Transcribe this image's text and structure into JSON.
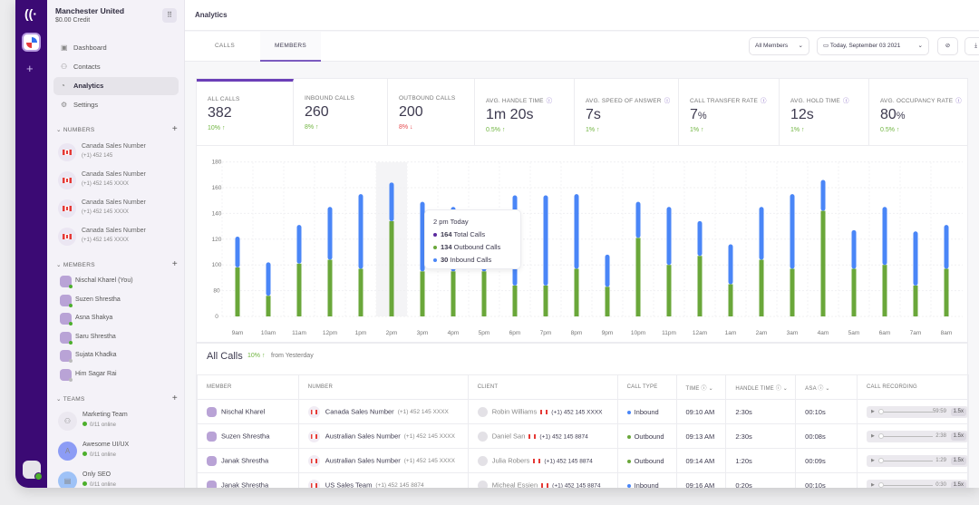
{
  "org": {
    "name": "Manchester United",
    "credit": "$0.00 Credit"
  },
  "nav": [
    {
      "label": "Dashboard",
      "icon": "dashboard-icon"
    },
    {
      "label": "Contacts",
      "icon": "contacts-icon"
    },
    {
      "label": "Analytics",
      "icon": "analytics-icon",
      "active": true
    },
    {
      "label": "Settings",
      "icon": "settings-icon"
    }
  ],
  "numbers": {
    "title": "NUMBERS",
    "items": [
      {
        "name": "Canada Sales Number",
        "number": "(+1) 452 145"
      },
      {
        "name": "Canada Sales Number",
        "number": "(+1) 452 145 XXXX"
      },
      {
        "name": "Canada Sales Number",
        "number": "(+1) 452 145 XXXX"
      },
      {
        "name": "Canada Sales Number",
        "number": "(+1) 452 145 XXXX"
      }
    ]
  },
  "members": {
    "title": "MEMBERS",
    "items": [
      {
        "name": "Nischal Kharel (You)",
        "online": true
      },
      {
        "name": "Suzen Shrestha",
        "online": true
      },
      {
        "name": "Asna Shakya",
        "online": true
      },
      {
        "name": "Saru Shrestha",
        "online": true
      },
      {
        "name": "Sujata Khadka",
        "online": false
      },
      {
        "name": "Him Sagar Rai",
        "online": false
      }
    ]
  },
  "teams": {
    "title": "TEAMS",
    "items": [
      {
        "name": "Marketing Team",
        "status": "0/11 online"
      },
      {
        "name": "Awesome UI/UX",
        "status": "0/11 online"
      },
      {
        "name": "Only SEO",
        "status": "0/11 online"
      }
    ]
  },
  "header": {
    "title": "Analytics"
  },
  "tabs": [
    {
      "label": "CALLS"
    },
    {
      "label": "MEMBERS",
      "active": true
    }
  ],
  "controls": {
    "members_filter": "All Members",
    "date": "Today, September 03 2021"
  },
  "stats": [
    {
      "label": "ALL CALLS",
      "value": "382",
      "change": "10%",
      "dir": "up"
    },
    {
      "label": "INBOUND CALLS",
      "value": "260",
      "change": "8%",
      "dir": "up"
    },
    {
      "label": "OUTBOUND CALLS",
      "value": "200",
      "change": "8%",
      "dir": "down"
    },
    {
      "label": "AVG. HANDLE TIME",
      "value": "1m 20s",
      "change": "0.5%",
      "dir": "up",
      "info": true
    },
    {
      "label": "AVG. SPEED OF ANSWER",
      "value": "7s",
      "change": "1%",
      "dir": "up",
      "info": true
    },
    {
      "label": "CALL TRANSFER RATE",
      "value": "7",
      "unit": "%",
      "change": "1%",
      "dir": "up",
      "info": true
    },
    {
      "label": "AVG. HOLD TIME",
      "value": "12s",
      "change": "1%",
      "dir": "up",
      "info": true
    },
    {
      "label": "AVG. OCCUPANCY RATE",
      "value": "80",
      "unit": "%",
      "change": "0.5%",
      "dir": "up",
      "info": true
    }
  ],
  "chart_data": {
    "type": "bar",
    "stacked": true,
    "grid": true,
    "yticks": [
      0,
      80,
      100,
      120,
      140,
      160,
      180
    ],
    "categories": [
      "9am",
      "10am",
      "11am",
      "12pm",
      "1pm",
      "2pm",
      "3pm",
      "4pm",
      "5pm",
      "6pm",
      "7pm",
      "8pm",
      "9pm",
      "10pm",
      "11pm",
      "12am",
      "1am",
      "2am",
      "3am",
      "4am",
      "5am",
      "6am",
      "7am",
      "8am"
    ],
    "series": [
      {
        "name": "Outbound Calls",
        "color": "#6aa73a",
        "values": [
          98,
          64,
          101,
          104,
          97,
          134,
          95,
          95,
          95,
          84,
          84,
          97,
          83,
          121,
          100,
          107,
          85,
          104,
          97,
          142,
          97,
          100,
          84,
          97
        ]
      },
      {
        "name": "Inbound Calls",
        "color": "#4a86f7",
        "values": [
          24,
          38,
          30,
          41,
          58,
          30,
          54,
          50,
          45,
          70,
          70,
          58,
          25,
          28,
          45,
          27,
          31,
          41,
          58,
          24,
          30,
          45,
          42,
          34
        ]
      }
    ],
    "highlight": "2pm",
    "tooltip": {
      "title": "2 pm Today",
      "total": "164",
      "total_label": "Total Calls",
      "outbound": "134",
      "outbound_label": "Outbound Calls",
      "inbound": "30",
      "inbound_label": "Inbound Calls"
    }
  },
  "calls": {
    "title": "All Calls",
    "change": "10%",
    "from": "from Yesterday",
    "columns": [
      "MEMBER",
      "NUMBER",
      "CLIENT",
      "CALL TYPE",
      "TIME",
      "HANDLE TIME",
      "ASA",
      "CALL RECORDING"
    ],
    "rows": [
      {
        "member": "Nischal Kharel",
        "number_name": "Canada Sales Number",
        "number": "(+1) 452 145 XXXX",
        "client": "Robin Williams",
        "client_number": "(+1) 452 145 XXXX",
        "type": "Inbound",
        "time": "09:10 AM",
        "handle": "2:30s",
        "asa": "00:10s",
        "duration": "59:59",
        "speed": "1.5x"
      },
      {
        "member": "Suzen Shrestha",
        "number_name": "Australian Sales Number",
        "number": "(+1) 452 145 XXXX",
        "client": "Daniel San",
        "client_number": "(+1) 452 145 8874",
        "type": "Outbound",
        "time": "09:13 AM",
        "handle": "2:30s",
        "asa": "00:08s",
        "duration": "2:38",
        "speed": "1.5x"
      },
      {
        "member": "Janak Shrestha",
        "number_name": "Australian Sales Number",
        "number": "(+1) 452 145 XXXX",
        "client": "Julia Robers",
        "client_number": "(+1) 452 145 8874",
        "type": "Outbound",
        "time": "09:14 AM",
        "handle": "1:20s",
        "asa": "00:09s",
        "duration": "1:29",
        "speed": "1.5x"
      },
      {
        "member": "Janak Shrestha",
        "number_name": "US Sales Team",
        "number": "(+1) 452 145 8874",
        "client": "Micheal Essien",
        "client_number": "(+1) 452 145 8874",
        "type": "Inbound",
        "time": "09:16 AM",
        "handle": "0:20s",
        "asa": "00:10s",
        "duration": "0:30",
        "speed": "1.5x"
      }
    ]
  },
  "colors": {
    "rail": "#3b0a74",
    "accent": "#6b3fb8",
    "up": "#6fb43f",
    "down": "#e5484d",
    "inbound": "#4a86f7",
    "outbound": "#6aa73a"
  }
}
